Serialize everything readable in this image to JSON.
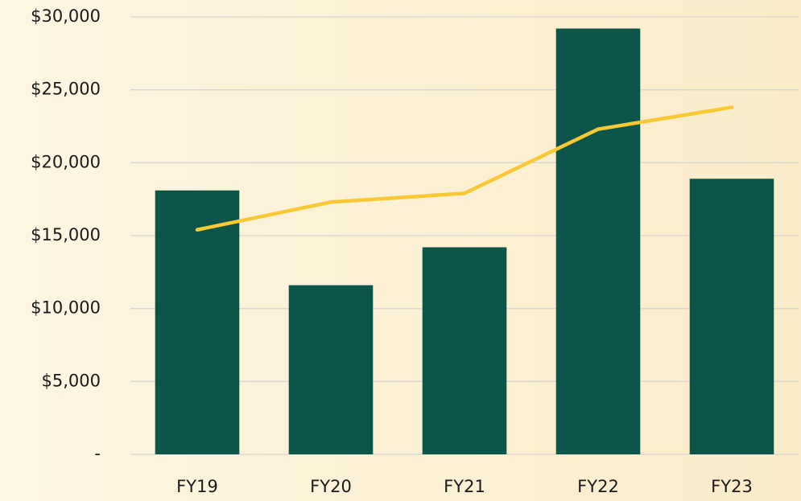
{
  "chart_data": {
    "type": "combo",
    "categories": [
      "FY19",
      "FY20",
      "FY21",
      "FY22",
      "FY23"
    ],
    "series": [
      {
        "type": "bar",
        "color": "#0d5549",
        "values": [
          18100,
          11600,
          14200,
          29200,
          18900
        ]
      },
      {
        "type": "line",
        "color": "#f9c935",
        "values": [
          15400,
          17300,
          17900,
          22300,
          23800
        ]
      }
    ],
    "ylim": [
      0,
      30000
    ],
    "yticks": [
      {
        "value": 0,
        "label": "-"
      },
      {
        "value": 5000,
        "label": "$5,000"
      },
      {
        "value": 10000,
        "label": "$10,000"
      },
      {
        "value": 15000,
        "label": "$15,000"
      },
      {
        "value": 20000,
        "label": "$20,000"
      },
      {
        "value": 25000,
        "label": "$25,000"
      },
      {
        "value": 30000,
        "label": "$30,000"
      }
    ],
    "grid": true
  }
}
